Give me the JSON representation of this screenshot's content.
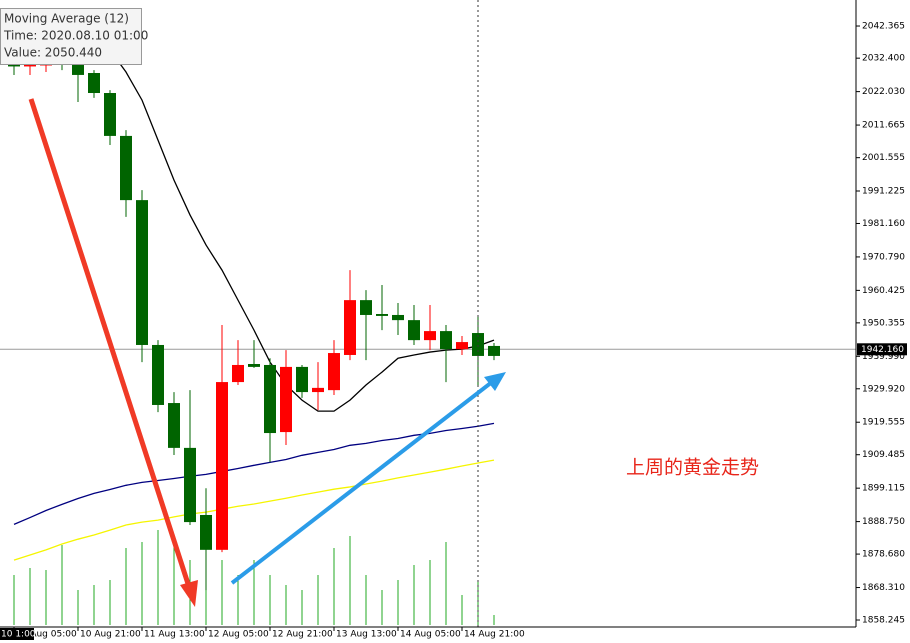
{
  "chart_data": {
    "type": "candlestick",
    "categories": [
      "10 Aug 05:00",
      null,
      null,
      null,
      "10 Aug 21:00",
      null,
      null,
      null,
      "11 Aug 13:00",
      null,
      null,
      null,
      "12 Aug 05:00",
      null,
      null,
      null,
      "12 Aug 21:00",
      null,
      null,
      null,
      "13 Aug 13:00",
      null,
      null,
      null,
      "14 Aug 05:00",
      null,
      null,
      null,
      "14 Aug 21:00",
      null,
      null
    ],
    "open": [
      2030.3,
      2030.0,
      2030.3,
      2031.2,
      2031.8,
      2027.8,
      2021.6,
      2008.3,
      1988.4,
      1943.5,
      1925.5,
      1911.6,
      1890.8,
      1880.0,
      1932.0,
      1937.6,
      1937.3,
      1916.5,
      1936.7,
      1928.9,
      1929.5,
      1940.4,
      1957.4,
      1953.1,
      1952.8,
      1951.2,
      1945.0,
      1947.8,
      1942.2,
      1947.2,
      1943.2
    ],
    "high": [
      2033.4,
      2033.4,
      2033.4,
      2034.9,
      2034.9,
      2028.7,
      2022.5,
      2010.1,
      1991.5,
      1945.0,
      1928.9,
      1929.5,
      1899.1,
      1949.7,
      1945.0,
      1945.0,
      1939.4,
      1941.9,
      1937.3,
      1938.2,
      1945.0,
      1966.7,
      1960.5,
      1962.1,
      1956.5,
      1955.9,
      1955.9,
      1949.7,
      1946.3,
      1952.8,
      1944.1
    ],
    "low": [
      2027.2,
      2027.2,
      2028.1,
      2028.7,
      2018.8,
      2020.1,
      2005.5,
      1983.2,
      1938.2,
      1922.7,
      1909.4,
      1887.7,
      1867.5,
      1879.3,
      1931.1,
      1936.4,
      1907.2,
      1912.5,
      1927.1,
      1923.3,
      1928.0,
      1938.8,
      1938.8,
      1948.1,
      1946.6,
      1943.5,
      1941.9,
      1932.0,
      1940.4,
      1931.1,
      1938.8
    ],
    "close": [
      2030.0,
      2030.3,
      2030.6,
      2030.3,
      2027.2,
      2021.6,
      2008.3,
      1988.4,
      1943.5,
      1924.9,
      1911.6,
      1888.6,
      1880.0,
      1932.0,
      1937.3,
      1936.7,
      1916.2,
      1936.7,
      1928.9,
      1930.2,
      1941.0,
      1957.4,
      1952.8,
      1952.5,
      1951.2,
      1945.0,
      1947.8,
      1942.2,
      1944.4,
      1940.1,
      1940.1
    ],
    "up_color": "#ff0000",
    "down_color": "#006400",
    "series": [
      {
        "name": "Moving Average (12)",
        "color": "#000000",
        "values": [
          null,
          null,
          null,
          null,
          null,
          2039.6,
          2034.9,
          2028.1,
          2019.4,
          2007.0,
          1994.6,
          1983.8,
          1974.5,
          1966.7,
          1957.4,
          1948.1,
          1938.2,
          1931.1,
          1926.4,
          1923.0,
          1923.0,
          1926.4,
          1931.1,
          1935.1,
          1939.4,
          1940.4,
          1941.3,
          1941.9,
          1942.2,
          1943.2,
          1945.0
        ]
      },
      {
        "color": "#000080",
        "values": [
          1887.9,
          1890.0,
          1892.2,
          1894.1,
          1895.9,
          1897.5,
          1898.7,
          1900.0,
          1900.9,
          1901.5,
          1902.1,
          1902.8,
          1903.4,
          1904.3,
          1905.2,
          1906.2,
          1907.1,
          1908.0,
          1909.3,
          1910.2,
          1911.1,
          1912.4,
          1913.0,
          1913.9,
          1914.5,
          1915.5,
          1916.1,
          1917.0,
          1917.6,
          1918.3,
          1919.2
        ]
      },
      {
        "color": "#f5f500",
        "values": [
          1876.8,
          1878.4,
          1880.0,
          1881.8,
          1883.3,
          1884.6,
          1886.1,
          1887.7,
          1888.6,
          1889.2,
          1890.2,
          1891.1,
          1891.7,
          1892.6,
          1893.5,
          1894.2,
          1895.1,
          1896.0,
          1897.0,
          1897.9,
          1898.8,
          1899.5,
          1900.4,
          1901.3,
          1902.3,
          1903.2,
          1904.1,
          1905.0,
          1906.0,
          1906.9,
          1907.8
        ]
      }
    ],
    "volume": {
      "color": "#22aa22",
      "ylim": [
        0,
        627
      ],
      "values": [
        50,
        57,
        55,
        80,
        35,
        40,
        45,
        77,
        83,
        95,
        85,
        65,
        135,
        65,
        50,
        65,
        50,
        40,
        35,
        50,
        77,
        89,
        50,
        35,
        45,
        60,
        65,
        83,
        30,
        45,
        10
      ]
    },
    "ylim": [
      1856.08,
      2050.43
    ],
    "yticks": [
      {
        "value": 2042.365,
        "label": "2042.365"
      },
      {
        "value": 2032.4,
        "label": "2032.400"
      },
      {
        "value": 2022.03,
        "label": "2022.030"
      },
      {
        "value": 2011.665,
        "label": "2011.665"
      },
      {
        "value": 2001.555,
        "label": "2001.555"
      },
      {
        "value": 1991.225,
        "label": "1991.225"
      },
      {
        "value": 1981.16,
        "label": "1981.160"
      },
      {
        "value": 1970.79,
        "label": "1970.790"
      },
      {
        "value": 1960.425,
        "label": "1960.425"
      },
      {
        "value": 1950.355,
        "label": "1950.355"
      },
      {
        "value": 1939.99,
        "label": "1939.990"
      },
      {
        "value": 1929.92,
        "label": "1929.920"
      },
      {
        "value": 1919.555,
        "label": "1919.555"
      },
      {
        "value": 1909.485,
        "label": "1909.485"
      },
      {
        "value": 1899.115,
        "label": "1899.115"
      },
      {
        "value": 1888.75,
        "label": "1888.750"
      },
      {
        "value": 1878.68,
        "label": "1878.680"
      },
      {
        "value": 1868.31,
        "label": "1868.310"
      },
      {
        "value": 1858.245,
        "label": "1858.245"
      }
    ],
    "current_price": {
      "value": 1942.16,
      "label": "1942.160"
    },
    "crosshair_label": "10 1:00",
    "tooltip": {
      "title": "Moving Average (12)",
      "time": "Time: 2020.08.10 01:00",
      "value": "Value: 2050.440"
    },
    "annotation": "上周的黄金走势"
  }
}
